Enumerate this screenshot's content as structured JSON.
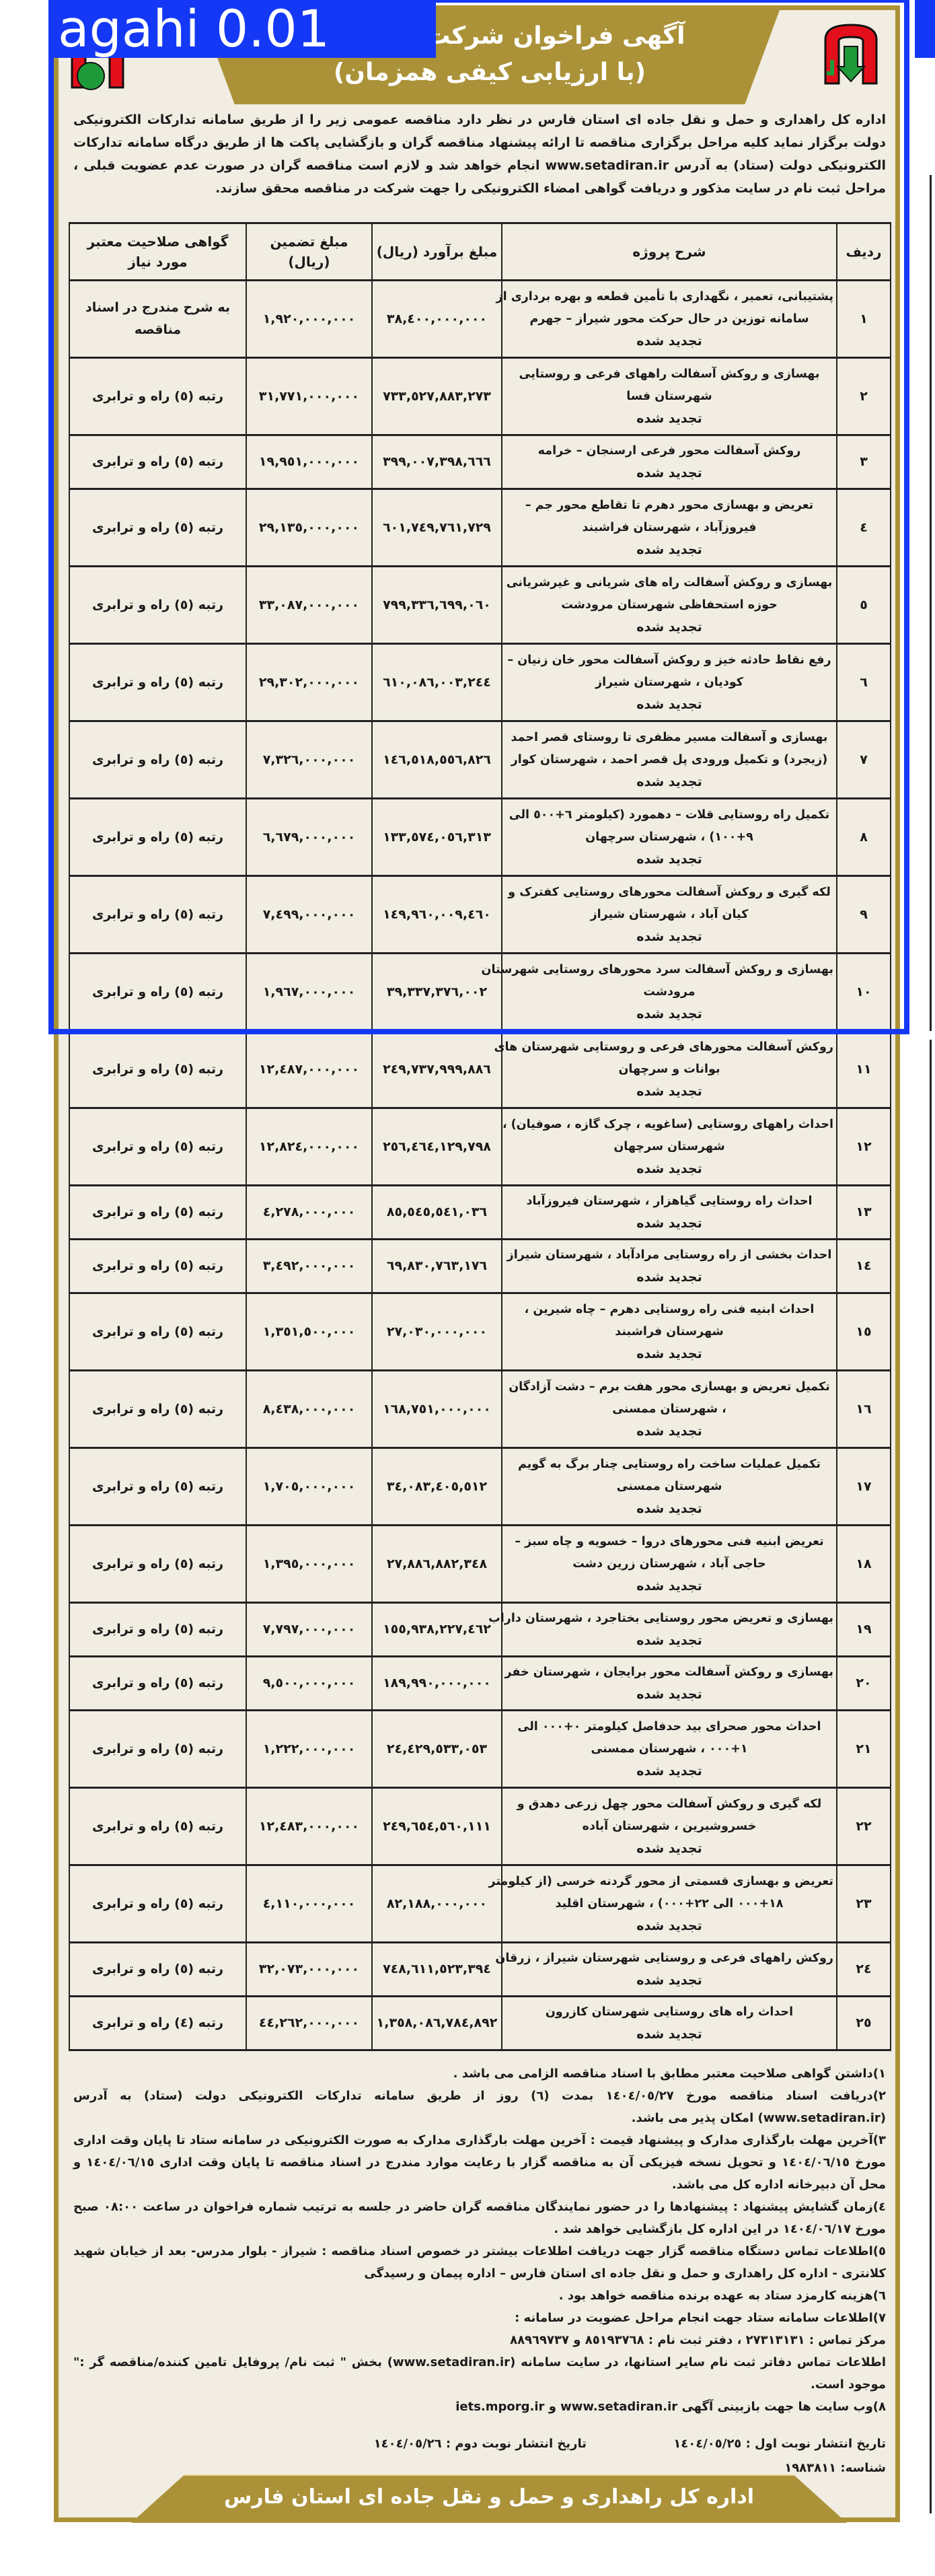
{
  "overlay_label": "agahi 0.01",
  "colors": {
    "gold": "#ab9238",
    "paper": "#f1ede2",
    "overlay_blue": "#1438f5",
    "logo_red": "#e3101b",
    "logo_green": "#1f9a3a"
  },
  "header": {
    "title": "آگهی فراخوان شرکت در مناقصه",
    "subtitle": "(با ارزیابی کیفی همزمان)",
    "logo_icon": "road-maintenance-logo-icon"
  },
  "intro": "اداره کل راهداری و حمل و نقل جاده ای استان فارس در نظر دارد مناقصه عمومی زیر را از طریق سامانه تدارکات الکترونیکی دولت برگزار نماید کلیه مراحل برگزاری مناقصه تا ارائه پیشنهاد مناقصه گران و بازگشایی پاکت ها از طریق درگاه سامانه تدارکات الکترونیکی دولت (ستاد) به آدرس www.setadiran.ir انجام خواهد شد و لازم است مناقصه گران در صورت عدم عضویت قبلی ، مراحل ثبت نام در سایت مذکور و دریافت گواهی امضاء الکترونیکی را جهت شرکت در مناقصه محقق سازند.",
  "table": {
    "columns": [
      "ردیف",
      "شرح پروژه",
      "مبلغ برآورد (ریال)",
      "مبلغ تضمین (ریال)",
      "گواهی صلاحیت معتبر مورد نیاز"
    ],
    "status_label": "تجدید شده",
    "rows": [
      {
        "no": "١",
        "desc": [
          "پشتیبانی، تعمیر ، نگهداری با تأمین قطعه و بهره برداری از",
          "سامانه توزین در حال حرکت محور شیراز – جهرم"
        ],
        "estimate": "٣٨,٤٠٠,٠٠٠,٠٠٠",
        "guarantee": "١,٩٢٠,٠٠٠,٠٠٠",
        "cert": "به شرح مندرج در اسناد مناقصه"
      },
      {
        "no": "٢",
        "desc": [
          "بهسازی و روکش آسفالت راههای فرعی و روستایی",
          "شهرستان فسا"
        ],
        "estimate": "٧٣٣,٥٢٧,٨٨٣,٢٧٣",
        "guarantee": "٣١,٧٧١,٠٠٠,٠٠٠",
        "cert": "رتبه (٥) راه و ترابری"
      },
      {
        "no": "٣",
        "desc": [
          "روکش آسفالت محور فرعی ارسنجان – خرامه"
        ],
        "estimate": "٣٩٩,٠٠٧,٣٩٨,٦٦٦",
        "guarantee": "١٩,٩٥١,٠٠٠,٠٠٠",
        "cert": "رتبه (٥) راه و ترابری"
      },
      {
        "no": "٤",
        "desc": [
          "تعریض و بهسازی محور دهرم تا تقاطع محور جم –",
          "فیروزآباد ، شهرستان فراشبند"
        ],
        "estimate": "٦٠١,٧٤٩,٧٦١,٧٢٩",
        "guarantee": "٢٩,١٣٥,٠٠٠,٠٠٠",
        "cert": "رتبه (٥) راه و ترابری"
      },
      {
        "no": "٥",
        "desc": [
          "بهسازی و روکش آسفالت راه های شریانی و غیرشریانی",
          "حوزه استحفاظی شهرستان مرودشت"
        ],
        "estimate": "٧٩٩,٣٣٦,٦٩٩,٠٦٠",
        "guarantee": "٣٣,٠٨٧,٠٠٠,٠٠٠",
        "cert": "رتبه (٥) راه و ترابری"
      },
      {
        "no": "٦",
        "desc": [
          "رفع نقاط حادثه خیز و روکش آسفالت محور خان زنیان –",
          "کودیان ، شهرستان شیراز"
        ],
        "estimate": "٦١٠,٠٨٦,٠٠٣,٢٤٤",
        "guarantee": "٢٩,٣٠٢,٠٠٠,٠٠٠",
        "cert": "رتبه (٥) راه و ترابری"
      },
      {
        "no": "٧",
        "desc": [
          "بهسازی و آسفالت مسیر مظفری تا روستای قصر احمد",
          "(زیجرد) و تکمیل ورودی پل قصر احمد ، شهرستان کوار"
        ],
        "estimate": "١٤٦,٥١٨,٥٥٦,٨٢٦",
        "guarantee": "٧,٣٢٦,٠٠٠,٠٠٠",
        "cert": "رتبه (٥) راه و ترابری"
      },
      {
        "no": "٨",
        "desc": [
          "تکمیل راه روستایی قلات – دهمورد (کیلومتر ٦+٥٠٠ الی",
          "٩+١٠٠) ، شهرستان سرچهان"
        ],
        "estimate": "١٣٣,٥٧٤,٠٥٦,٣١٣",
        "guarantee": "٦,٦٧٩,٠٠٠,٠٠٠",
        "cert": "رتبه (٥) راه و ترابری"
      },
      {
        "no": "٩",
        "desc": [
          "لکه گیری و روکش آسفالت محورهای روستایی کفترک و",
          "کیان آباد ، شهرستان شیراز"
        ],
        "estimate": "١٤٩,٩٦٠,٠٠٩,٤٦٠",
        "guarantee": "٧,٤٩٩,٠٠٠,٠٠٠",
        "cert": "رتبه (٥) راه و ترابری"
      },
      {
        "no": "١٠",
        "desc": [
          "بهسازی و روکش آسفالت سرد محورهای روستایی شهرستان",
          "مرودشت"
        ],
        "estimate": "٣٩,٣٣٧,٣٧٦,٠٠٢",
        "guarantee": "١,٩٦٧,٠٠٠,٠٠٠",
        "cert": "رتبه (٥) راه و ترابری"
      },
      {
        "no": "١١",
        "desc": [
          "روکش آسفالت محورهای فرعی و روستایی شهرستان های",
          "بوانات و سرچهان"
        ],
        "estimate": "٢٤٩,٧٣٧,٩٩٩,٨٨٦",
        "guarantee": "١٢,٤٨٧,٠٠٠,٠٠٠",
        "cert": "رتبه (٥) راه و ترابری"
      },
      {
        "no": "١٢",
        "desc": [
          "احداث راههای روستایی (ساغویه ، چرک گازه ، صوفیان) ،",
          "شهرستان سرچهان"
        ],
        "estimate": "٢٥٦,٤٦٤,١٢٩,٧٩٨",
        "guarantee": "١٢,٨٢٤,٠٠٠,٠٠٠",
        "cert": "رتبه (٥) راه و ترابری"
      },
      {
        "no": "١٣",
        "desc": [
          "احداث راه روستایی گیاهزار ، شهرستان فیروزآباد"
        ],
        "estimate": "٨٥,٥٤٥,٥٤١,٠٣٦",
        "guarantee": "٤,٢٧٨,٠٠٠,٠٠٠",
        "cert": "رتبه (٥) راه و ترابری"
      },
      {
        "no": "١٤",
        "desc": [
          "احداث بخشی از راه روستایی مرادآباد ، شهرستان شیراز"
        ],
        "estimate": "٦٩,٨٣٠,٧٦٣,١٧٦",
        "guarantee": "٣,٤٩٢,٠٠٠,٠٠٠",
        "cert": "رتبه (٥) راه و ترابری"
      },
      {
        "no": "١٥",
        "desc": [
          "احداث ابنیه فنی راه روستایی دهرم – چاه شیرین ،",
          "شهرستان فراشبند"
        ],
        "estimate": "٢٧,٠٣٠,٠٠٠,٠٠٠",
        "guarantee": "١,٣٥١,٥٠٠,٠٠٠",
        "cert": "رتبه (٥) راه و ترابری"
      },
      {
        "no": "١٦",
        "desc": [
          "تکمیل تعریض و بهسازی محور هفت برم – دشت آزادگان",
          "، شهرستان ممسنی"
        ],
        "estimate": "١٦٨,٧٥١,٠٠٠,٠٠٠",
        "guarantee": "٨,٤٣٨,٠٠٠,٠٠٠",
        "cert": "رتبه (٥) راه و ترابری"
      },
      {
        "no": "١٧",
        "desc": [
          "تکمیل عملیات ساخت راه روستایی چنار برگ به گویم",
          "شهرستان ممسنی"
        ],
        "estimate": "٣٤,٠٨٣,٤٠٥,٥١٢",
        "guarantee": "١,٧٠٥,٠٠٠,٠٠٠",
        "cert": "رتبه (٥) راه و ترابری"
      },
      {
        "no": "١٨",
        "desc": [
          "تعریض ابنیه فنی محورهای دروا – خسویه و چاه سبز –",
          "حاجی آباد ، شهرستان زرین دشت"
        ],
        "estimate": "٢٧,٨٨٦,٨٨٢,٣٤٨",
        "guarantee": "١,٣٩٥,٠٠٠,٠٠٠",
        "cert": "رتبه (٥) راه و ترابری"
      },
      {
        "no": "١٩",
        "desc": [
          "بهسازی و تعریض محور روستایی بختاجرد ، شهرستان داراب"
        ],
        "estimate": "١٥٥,٩٣٨,٢٢٧,٤٦٢",
        "guarantee": "٧,٧٩٧,٠٠٠,٠٠٠",
        "cert": "رتبه (٥) راه و ترابری"
      },
      {
        "no": "٢٠",
        "desc": [
          "بهسازی و روکش آسفالت محور برایجان ، شهرستان خفر"
        ],
        "estimate": "١٨٩,٩٩٠,٠٠٠,٠٠٠",
        "guarantee": "٩,٥٠٠,٠٠٠,٠٠٠",
        "cert": "رتبه (٥) راه و ترابری"
      },
      {
        "no": "٢١",
        "desc": [
          "احداث محور صحرای بید حدفاصل کیلومتر ٠+٠٠٠ الی",
          "١+٠٠٠ ، شهرستان ممسنی"
        ],
        "estimate": "٢٤,٤٢٩,٥٣٣,٠٥٣",
        "guarantee": "١,٢٢٢,٠٠٠,٠٠٠",
        "cert": "رتبه (٥) راه و ترابری"
      },
      {
        "no": "٢٢",
        "desc": [
          "لکه گیری و روکش آسفالت محور چهل زرعی دهدق و",
          "خسروشیرین ، شهرستان آباده"
        ],
        "estimate": "٢٤٩,٦٥٤,٥٦٠,١١١",
        "guarantee": "١٢,٤٨٣,٠٠٠,٠٠٠",
        "cert": "رتبه (٥) راه و ترابری"
      },
      {
        "no": "٢٣",
        "desc": [
          "تعریض و بهسازی قسمتی از محور گردنه خرسی (از کیلومتر",
          "١٨+٠٠٠ الی ٢٢+٠٠٠) ، شهرستان اقلید"
        ],
        "estimate": "٨٢,١٨٨,٠٠٠,٠٠٠",
        "guarantee": "٤,١١٠,٠٠٠,٠٠٠",
        "cert": "رتبه (٥) راه و ترابری"
      },
      {
        "no": "٢٤",
        "desc": [
          "روکش راههای فرعی و روستایی شهرستان شیراز ، زرقان"
        ],
        "estimate": "٧٤٨,٦١١,٥٢٣,٣٩٤",
        "guarantee": "٣٢,٠٧٣,٠٠٠,٠٠٠",
        "cert": "رتبه (٥) راه و ترابری"
      },
      {
        "no": "٢٥",
        "desc": [
          "احداث راه های روستایی شهرستان کازرون"
        ],
        "estimate": "١,٣٥٨,٠٨٦,٧٨٤,٨٩٢",
        "guarantee": "٤٤,٢٦٢,٠٠٠,٠٠٠",
        "cert": "رتبه (٤) راه و ترابری"
      }
    ]
  },
  "notes": [
    "١)داشتن گواهی صلاحیت معتبر مطابق با اسناد مناقصه الزامی می باشد .",
    "٢)دریافت اسناد مناقصه مورخ ١٤٠٤/٠٥/٢٧ بمدت (٦) روز از طریق سامانه تدارکات الکترونیکی دولت (ستاد) به آدرس (www.setadiran.ir) امکان پذیر می باشد.",
    "٣)آخرین مهلت بارگذاری مدارک و پیشنهاد قیمت : آخرین مهلت بارگذاری مدارک به صورت الکترونیکی در سامانه ستاد تا پایان وقت اداری مورخ ١٤٠٤/٠٦/١٥ و تحویل نسخه فیزیکی آن به مناقصه گزار با رعایت موارد مندرج در اسناد مناقصه تا پایان وقت اداری ١٤٠٤/٠٦/١٥ و محل آن دبیرخانه اداره کل می باشد.",
    "٤)زمان گشایش پیشنهاد : پیشنهادها را در حضور نمایندگان مناقصه گران حاضر در جلسه به ترتیب شماره فراخوان در ساعت ٠٨:٠٠ صبح مورخ ١٤٠٤/٠٦/١٧ در این اداره کل بازگشایی خواهد شد .",
    "٥)اطلاعات تماس دستگاه مناقصه گزار جهت دریافت اطلاعات بیشتر در خصوص اسناد مناقصه : شیراز - بلوار مدرس- بعد از خیابان شهید کلانتری - اداره کل راهداری و حمل و نقل جاده ای استان فارس – اداره پیمان و رسیدگی",
    "٦)هزینه کارمزد ستاد به عهده برنده مناقصه خواهد بود .",
    "٧)اطلاعات سامانه ستاد جهت انجام مراحل عضویت در سامانه :",
    "مرکز تماس : ٢٧٣١٣١٣١ ، دفتر ثبت نام : ٨٥١٩٣٧٦٨ و ٨٨٩٦٩٧٣٧",
    "اطلاعات تماس دفاتر ثبت نام سایر استانها، در سایت سامانه (www.setadiran.ir) بخش \" ثبت نام/ پروفایل تامین کننده/مناقصه گر :\" موجود است.",
    "٨)وب سایت ها جهت بازبینی آگهی www.setadiran.ir و iets.mporg.ir"
  ],
  "publication": {
    "first": "تاریخ انتشار نوبت اول : ١٤٠٤/٠٥/٢٥",
    "second": "تاریخ انتشار نوبت دوم : ١٤٠٤/٠٥/٢٦",
    "id": "شناسه: ١٩٨٣٨١١"
  },
  "footer": "اداره کل راهداری و حمل و نقل جاده ای استان فارس"
}
